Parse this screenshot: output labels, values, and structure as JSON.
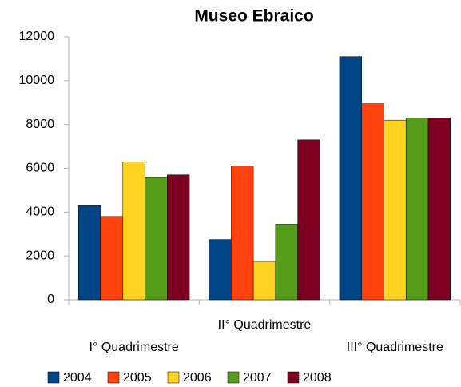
{
  "chart_data": {
    "type": "bar",
    "title": "Museo Ebraico",
    "categories": [
      "I° Quadrimestre",
      "II° Quadrimestre",
      "III° Quadrimestre"
    ],
    "series": [
      {
        "name": "2004",
        "color": "#004586",
        "values": [
          4300,
          2750,
          11100
        ]
      },
      {
        "name": "2005",
        "color": "#ff420e",
        "values": [
          3800,
          6100,
          8950
        ]
      },
      {
        "name": "2006",
        "color": "#ffd320",
        "values": [
          6300,
          1750,
          8200
        ]
      },
      {
        "name": "2007",
        "color": "#579d1c",
        "values": [
          5600,
          3450,
          8300
        ]
      },
      {
        "name": "2008",
        "color": "#7e0021",
        "values": [
          5700,
          7300,
          8300
        ]
      }
    ],
    "ylim": [
      0,
      12000
    ],
    "yticks": [
      0,
      2000,
      4000,
      6000,
      8000,
      10000,
      12000
    ],
    "grid": false,
    "legend": "bottom"
  }
}
